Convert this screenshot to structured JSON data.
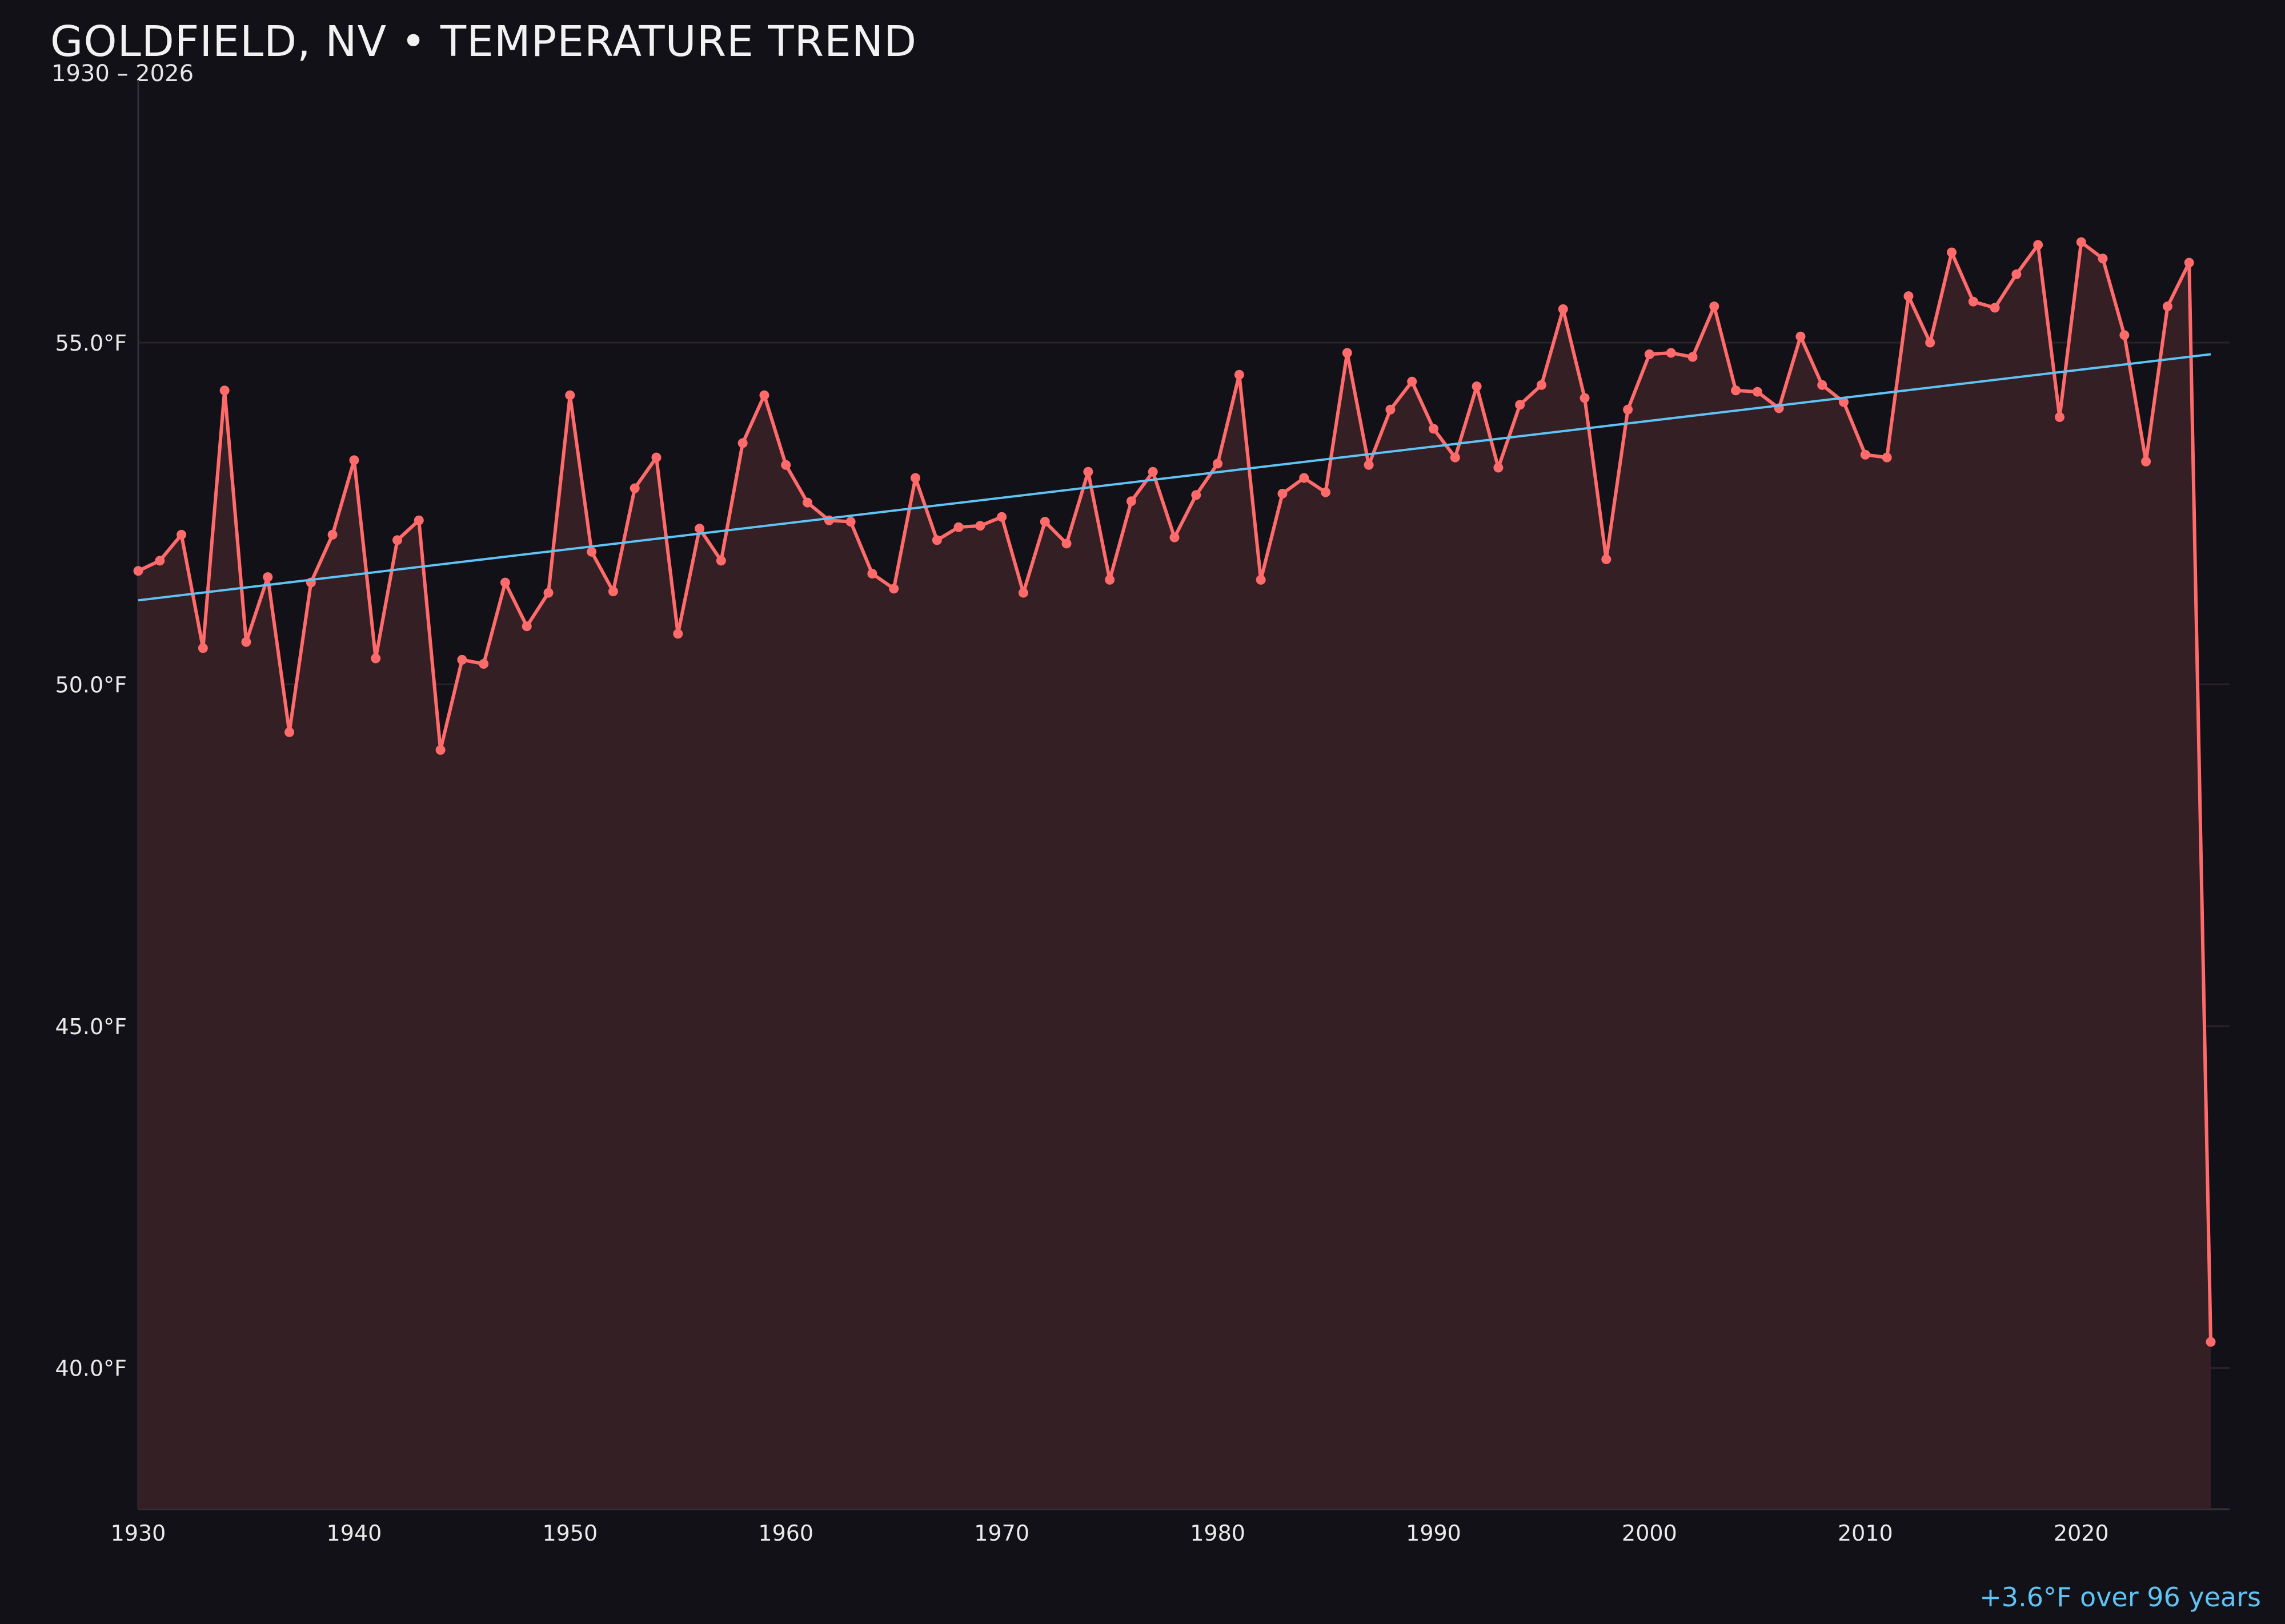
{
  "colors": {
    "background": "#121118",
    "series": "#ff6b6b",
    "fill": "#341f25",
    "trend": "#5fc3f5",
    "grid": "#2a2228"
  },
  "chart_data": {
    "type": "line",
    "title": "GOLDFIELD, NV • TEMPERATURE TREND",
    "subtitle": "1930 – 2026",
    "xlabel": "",
    "ylabel": "",
    "xlim": [
      1930,
      2027
    ],
    "ylim": [
      38.0,
      58.8
    ],
    "grid": true,
    "x_ticks": [
      1930,
      1940,
      1950,
      1960,
      1970,
      1980,
      1990,
      2000,
      2010,
      2020
    ],
    "y_ticks": [
      {
        "value": 40,
        "label": "40.0°F"
      },
      {
        "value": 45,
        "label": "45.0°F"
      },
      {
        "value": 50,
        "label": "50.0°F"
      },
      {
        "value": 55,
        "label": "55.0°F"
      }
    ],
    "x": [
      1930,
      1931,
      1932,
      1933,
      1934,
      1935,
      1936,
      1937,
      1938,
      1939,
      1940,
      1941,
      1942,
      1943,
      1944,
      1945,
      1946,
      1947,
      1948,
      1949,
      1950,
      1951,
      1952,
      1953,
      1954,
      1955,
      1956,
      1957,
      1958,
      1959,
      1960,
      1961,
      1962,
      1963,
      1964,
      1965,
      1966,
      1967,
      1968,
      1969,
      1970,
      1971,
      1972,
      1973,
      1974,
      1975,
      1976,
      1977,
      1978,
      1979,
      1980,
      1981,
      1982,
      1983,
      1984,
      1985,
      1986,
      1987,
      1988,
      1989,
      1990,
      1991,
      1992,
      1993,
      1994,
      1995,
      1996,
      1997,
      1998,
      1999,
      2000,
      2001,
      2002,
      2003,
      2004,
      2005,
      2006,
      2007,
      2008,
      2009,
      2010,
      2011,
      2012,
      2013,
      2014,
      2015,
      2016,
      2017,
      2018,
      2019,
      2020,
      2021,
      2022,
      2023,
      2024,
      2025,
      2026
    ],
    "values": [
      51.66,
      51.81,
      52.19,
      50.53,
      54.3,
      50.62,
      51.57,
      49.3,
      51.49,
      52.19,
      53.28,
      50.38,
      52.11,
      52.4,
      49.04,
      50.36,
      50.3,
      51.49,
      50.85,
      51.34,
      54.23,
      51.94,
      51.36,
      52.87,
      53.32,
      50.74,
      52.28,
      51.81,
      53.53,
      54.23,
      53.21,
      52.66,
      52.4,
      52.38,
      51.62,
      51.4,
      53.02,
      52.11,
      52.3,
      52.32,
      52.45,
      51.34,
      52.38,
      52.06,
      53.11,
      51.53,
      52.68,
      53.11,
      52.15,
      52.77,
      53.23,
      54.53,
      51.53,
      52.79,
      53.02,
      52.81,
      54.85,
      53.21,
      54.02,
      54.43,
      53.74,
      53.32,
      54.36,
      53.17,
      54.09,
      54.38,
      55.49,
      54.19,
      51.83,
      54.02,
      54.83,
      54.85,
      54.79,
      55.53,
      54.3,
      54.28,
      54.04,
      55.09,
      54.38,
      54.13,
      53.36,
      53.32,
      55.68,
      55.0,
      56.32,
      55.6,
      55.51,
      56.0,
      56.43,
      53.91,
      56.47,
      56.23,
      55.11,
      53.26,
      55.53,
      56.17,
      40.38
    ],
    "trend": {
      "start": {
        "x": 1930,
        "y": 51.23
      },
      "end": {
        "x": 2026,
        "y": 54.83
      }
    },
    "annotation": "+3.6°F over 96 years"
  }
}
